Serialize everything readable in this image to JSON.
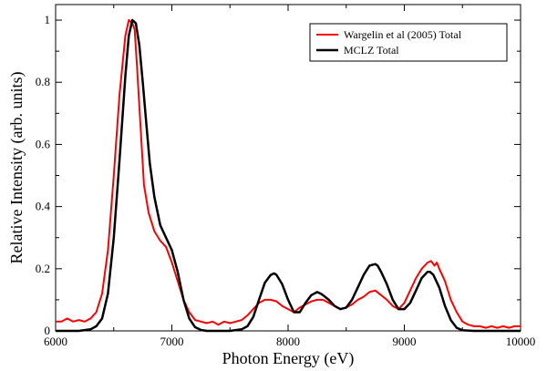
{
  "chart_data": {
    "type": "line",
    "title": "",
    "xlabel": "Photon Energy (eV)",
    "ylabel": "Relative Intensity (arb. units)",
    "xlim": [
      6000,
      10000
    ],
    "ylim": [
      0,
      1.05
    ],
    "xticks": [
      6000,
      7000,
      8000,
      9000,
      10000
    ],
    "yticks": [
      0,
      0.2,
      0.4,
      0.6,
      0.8,
      1
    ],
    "ytick_labels": [
      "0",
      "0.2",
      "0.4",
      "0.6",
      "0.8",
      "1"
    ],
    "legend_position": "top-right",
    "series": [
      {
        "name": "Wargelin et al (2005) Total",
        "color": "#ff0000",
        "x": [
          6000,
          6050,
          6100,
          6150,
          6200,
          6250,
          6300,
          6350,
          6400,
          6450,
          6500,
          6550,
          6600,
          6630,
          6660,
          6680,
          6700,
          6730,
          6760,
          6800,
          6850,
          6900,
          6950,
          7000,
          7050,
          7100,
          7150,
          7200,
          7250,
          7300,
          7350,
          7400,
          7450,
          7500,
          7550,
          7600,
          7650,
          7700,
          7750,
          7800,
          7850,
          7900,
          7950,
          8000,
          8050,
          8100,
          8150,
          8200,
          8250,
          8300,
          8350,
          8400,
          8450,
          8500,
          8550,
          8600,
          8650,
          8700,
          8750,
          8800,
          8850,
          8900,
          8950,
          9000,
          9050,
          9100,
          9150,
          9200,
          9230,
          9260,
          9280,
          9300,
          9350,
          9400,
          9450,
          9500,
          9550,
          9600,
          9650,
          9700,
          9750,
          9800,
          9850,
          9900,
          9950,
          10000
        ],
        "values": [
          0.03,
          0.03,
          0.04,
          0.03,
          0.035,
          0.03,
          0.04,
          0.06,
          0.12,
          0.26,
          0.5,
          0.76,
          0.95,
          1.0,
          0.99,
          0.97,
          0.85,
          0.66,
          0.47,
          0.38,
          0.32,
          0.29,
          0.27,
          0.22,
          0.16,
          0.1,
          0.06,
          0.035,
          0.03,
          0.025,
          0.03,
          0.02,
          0.03,
          0.025,
          0.03,
          0.035,
          0.05,
          0.07,
          0.09,
          0.1,
          0.1,
          0.095,
          0.08,
          0.07,
          0.06,
          0.075,
          0.085,
          0.095,
          0.1,
          0.1,
          0.09,
          0.08,
          0.07,
          0.075,
          0.085,
          0.1,
          0.11,
          0.125,
          0.13,
          0.115,
          0.1,
          0.08,
          0.07,
          0.09,
          0.13,
          0.17,
          0.2,
          0.22,
          0.225,
          0.21,
          0.22,
          0.2,
          0.16,
          0.1,
          0.06,
          0.03,
          0.02,
          0.015,
          0.015,
          0.01,
          0.015,
          0.01,
          0.015,
          0.01,
          0.015,
          0.015
        ]
      },
      {
        "name": "MCLZ Total",
        "color": "#000000",
        "x": [
          6000,
          6100,
          6200,
          6300,
          6350,
          6400,
          6450,
          6500,
          6550,
          6600,
          6630,
          6660,
          6690,
          6720,
          6750,
          6780,
          6810,
          6850,
          6900,
          6950,
          7000,
          7050,
          7100,
          7150,
          7200,
          7250,
          7300,
          7400,
          7500,
          7600,
          7650,
          7700,
          7750,
          7800,
          7850,
          7880,
          7900,
          7950,
          8000,
          8050,
          8100,
          8150,
          8200,
          8250,
          8280,
          8300,
          8350,
          8400,
          8450,
          8500,
          8550,
          8600,
          8650,
          8700,
          8750,
          8770,
          8800,
          8850,
          8900,
          8950,
          9000,
          9050,
          9100,
          9150,
          9200,
          9220,
          9250,
          9300,
          9350,
          9400,
          9450,
          9500,
          9600,
          9700,
          9800,
          9900,
          10000
        ],
        "values": [
          0,
          0,
          0,
          0.005,
          0.015,
          0.04,
          0.12,
          0.3,
          0.55,
          0.82,
          0.95,
          1.0,
          0.99,
          0.92,
          0.8,
          0.67,
          0.54,
          0.43,
          0.34,
          0.3,
          0.26,
          0.19,
          0.1,
          0.04,
          0.012,
          0.003,
          0,
          0,
          0,
          0.005,
          0.015,
          0.045,
          0.1,
          0.155,
          0.18,
          0.185,
          0.18,
          0.15,
          0.1,
          0.06,
          0.06,
          0.09,
          0.115,
          0.125,
          0.12,
          0.115,
          0.1,
          0.08,
          0.07,
          0.075,
          0.1,
          0.14,
          0.18,
          0.21,
          0.215,
          0.21,
          0.19,
          0.15,
          0.1,
          0.07,
          0.07,
          0.09,
          0.13,
          0.17,
          0.19,
          0.19,
          0.18,
          0.14,
          0.08,
          0.035,
          0.01,
          0.002,
          0,
          0,
          0,
          0,
          0
        ]
      }
    ]
  }
}
